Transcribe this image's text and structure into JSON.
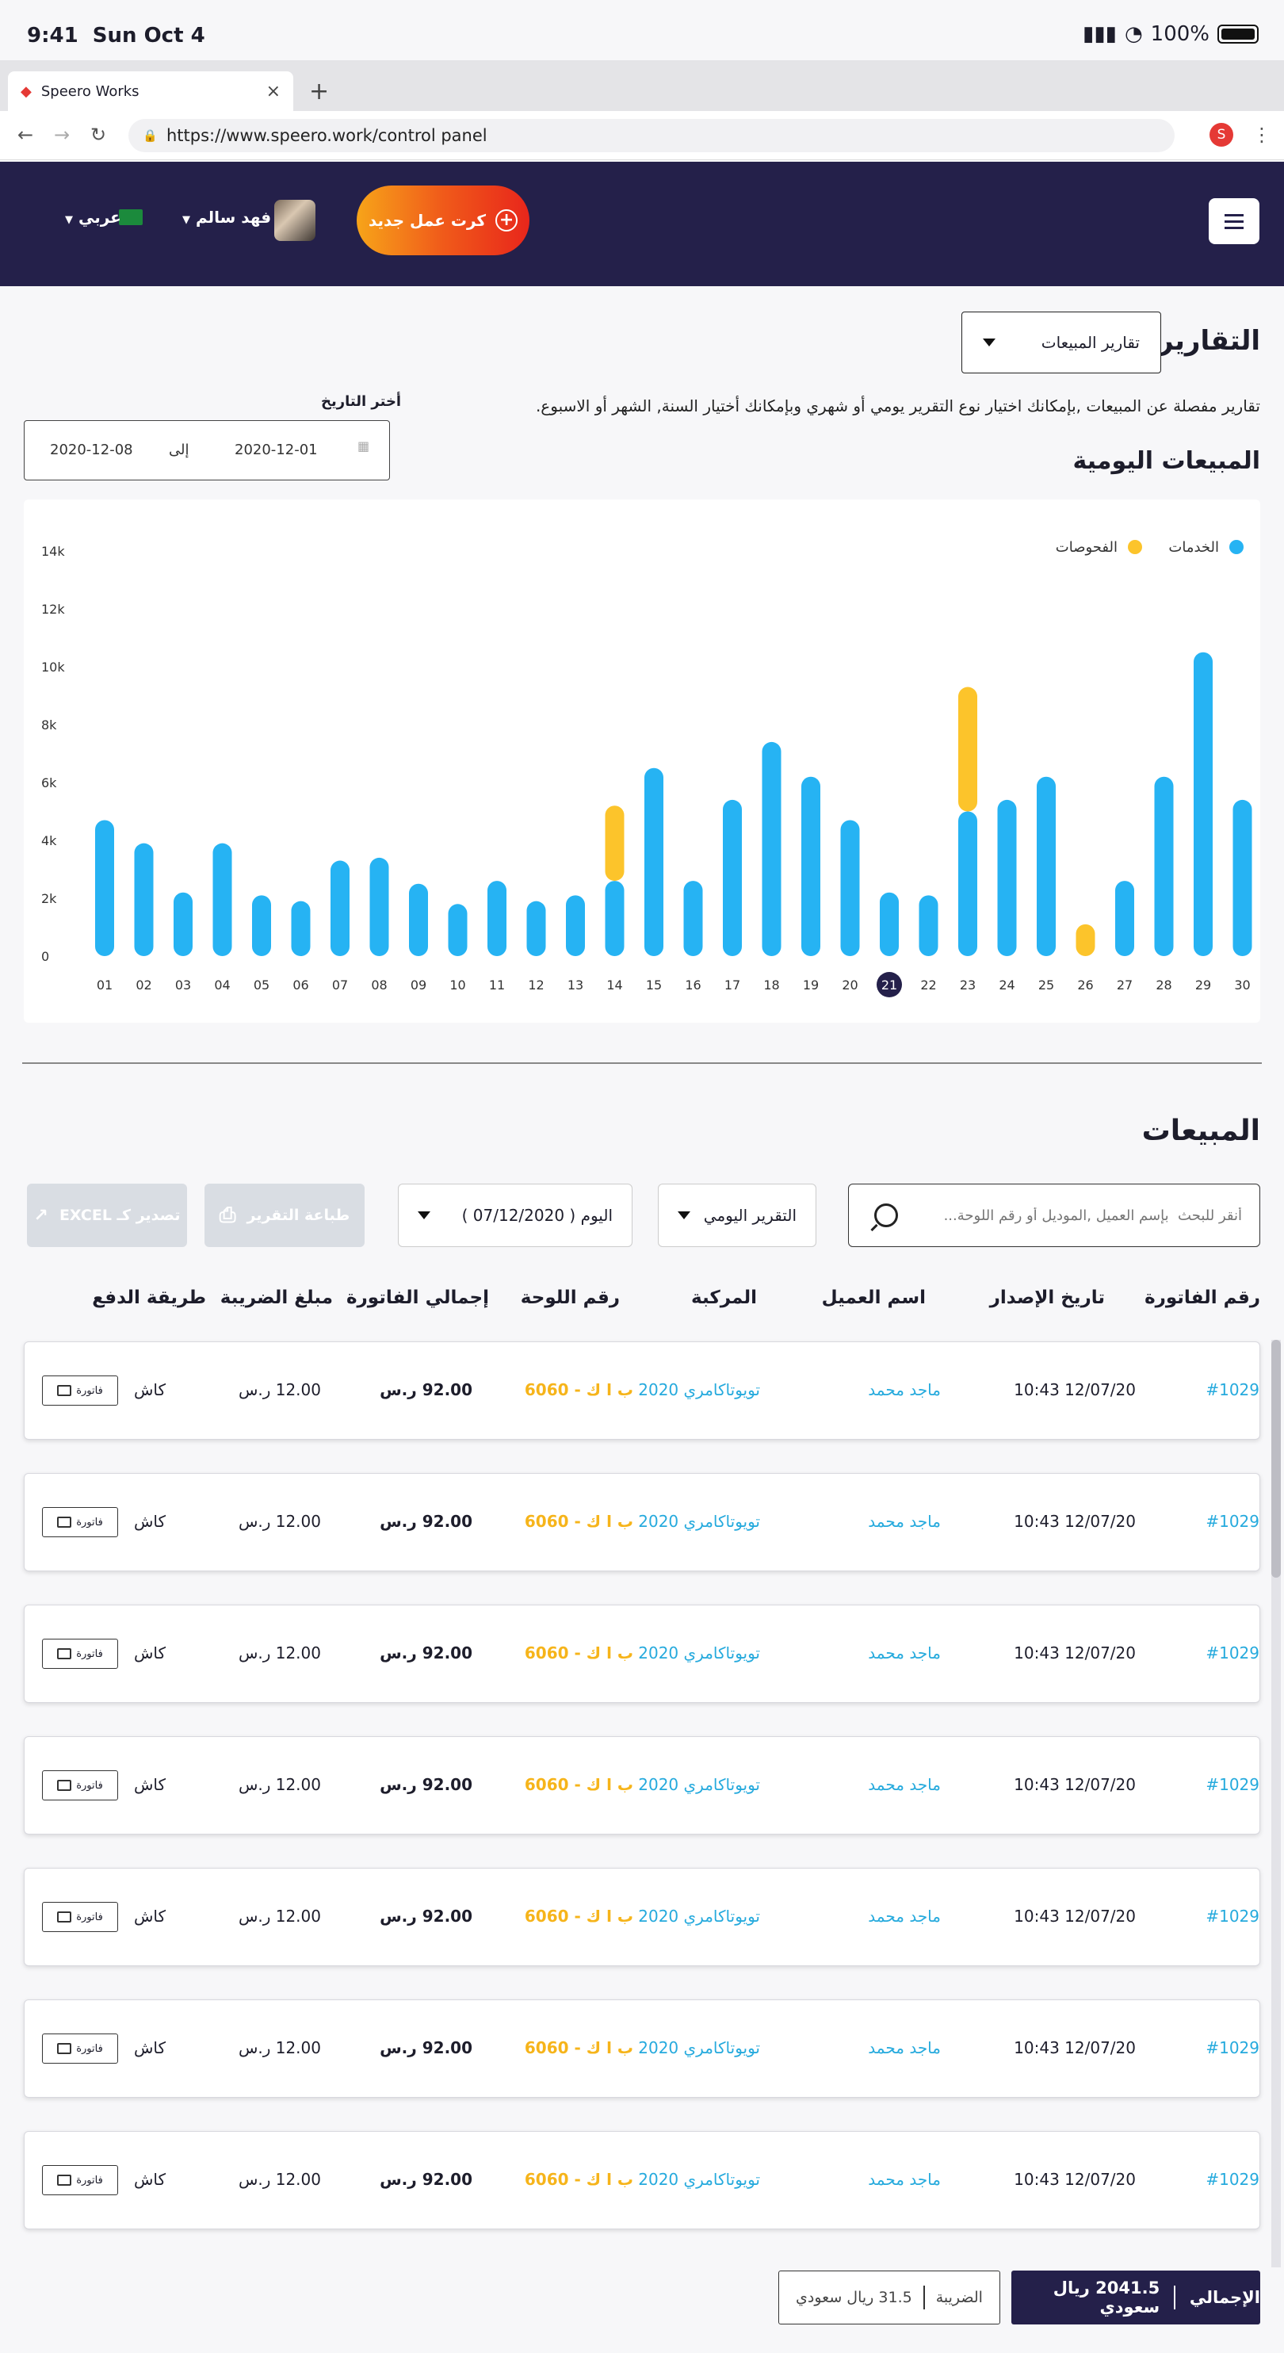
{
  "status_bar": {
    "time": "9:41",
    "date": "Sun Oct 4",
    "battery": "100%"
  },
  "browser": {
    "tab_title": "Speero Works",
    "url": "https://www.speero.work/control panel",
    "profile_initial": "S"
  },
  "header": {
    "new_job_label": "كرت عمل جديد",
    "user_name": "فهد سالم",
    "language": "عربي"
  },
  "reports": {
    "title": "التقارير",
    "report_type": "تقارير المبيعات",
    "description": "تقارير مفصلة عن المبيعات ,بإمكانك اختيار نوع التقرير يومي أو شهري وبإمكانك أختيار السنة, الشهر أو الاسبوع.",
    "date_label": "أختر التاريخ",
    "date_from": "2020-12-01",
    "date_to_label": "إلى",
    "date_to": "2020-12-08",
    "daily_sales_title": "المبيعات اليومية"
  },
  "chart_data": {
    "type": "bar",
    "stacked": true,
    "categories": [
      "01",
      "02",
      "03",
      "04",
      "05",
      "06",
      "07",
      "08",
      "09",
      "10",
      "11",
      "12",
      "13",
      "14",
      "15",
      "16",
      "17",
      "18",
      "19",
      "20",
      "21",
      "22",
      "23",
      "24",
      "25",
      "26",
      "27",
      "28",
      "29",
      "30"
    ],
    "series": [
      {
        "name": "الخدمات",
        "color": "#26b3f3",
        "values": [
          4700,
          3900,
          2200,
          3900,
          2100,
          1900,
          3300,
          3400,
          2500,
          1800,
          2600,
          1900,
          2100,
          2600,
          6500,
          2600,
          5400,
          7400,
          6200,
          4700,
          2200,
          2100,
          5000,
          5400,
          6200,
          0,
          2600,
          6200,
          10500,
          5400
        ]
      },
      {
        "name": "الفحوصات",
        "color": "#fcc42b",
        "values": [
          0,
          0,
          0,
          0,
          0,
          0,
          0,
          0,
          0,
          0,
          0,
          0,
          0,
          2600,
          0,
          0,
          0,
          0,
          0,
          0,
          0,
          0,
          4300,
          0,
          0,
          1100,
          0,
          0,
          0,
          0
        ]
      }
    ],
    "yticks": [
      "0",
      "2k",
      "4k",
      "6k",
      "8k",
      "10k",
      "12k",
      "14k"
    ],
    "ylim": [
      0,
      14000
    ],
    "highlighted_category": "21",
    "legend_position": "top-right"
  },
  "sales": {
    "title": "المبيعات",
    "search_placeholder": "أنقر للبحث  بإسم العميل ,الموديل أو رقم اللوحة...",
    "report_period": "التقرير اليومي",
    "day_selector": "اليوم ( 07/12/2020 )",
    "print_label": "طباعة التقرير",
    "export_label": "تصدير كـ EXCEL",
    "columns": [
      "رقم الفاتورة",
      "تاريخ الإصدار",
      "اسم العميل",
      "المركبة",
      "رقم اللوحة",
      "إجمالي الفاتورة",
      "مبلغ الضريبة",
      "طريقة الدفع"
    ],
    "rows": [
      {
        "invoice": "#1029",
        "date": "12/07/20 10:43",
        "customer": "ماجد محمد",
        "vehicle": "تويوتاكامري 2020",
        "plate": "ب ا ك - 6060",
        "total": "92.00 ر.س",
        "tax": "12.00 ر.س",
        "payment": "كاش",
        "invoice_btn": "فاتورة"
      },
      {
        "invoice": "#1029",
        "date": "12/07/20 10:43",
        "customer": "ماجد محمد",
        "vehicle": "تويوتاكامري 2020",
        "plate": "ب ا ك - 6060",
        "total": "92.00 ر.س",
        "tax": "12.00 ر.س",
        "payment": "كاش",
        "invoice_btn": "فاتورة"
      },
      {
        "invoice": "#1029",
        "date": "12/07/20 10:43",
        "customer": "ماجد محمد",
        "vehicle": "تويوتاكامري 2020",
        "plate": "ب ا ك - 6060",
        "total": "92.00 ر.س",
        "tax": "12.00 ر.س",
        "payment": "كاش",
        "invoice_btn": "فاتورة"
      },
      {
        "invoice": "#1029",
        "date": "12/07/20 10:43",
        "customer": "ماجد محمد",
        "vehicle": "تويوتاكامري 2020",
        "plate": "ب ا ك - 6060",
        "total": "92.00 ر.س",
        "tax": "12.00 ر.س",
        "payment": "كاش",
        "invoice_btn": "فاتورة"
      },
      {
        "invoice": "#1029",
        "date": "12/07/20 10:43",
        "customer": "ماجد محمد",
        "vehicle": "تويوتاكامري 2020",
        "plate": "ب ا ك - 6060",
        "total": "92.00 ر.س",
        "tax": "12.00 ر.س",
        "payment": "كاش",
        "invoice_btn": "فاتورة"
      },
      {
        "invoice": "#1029",
        "date": "12/07/20 10:43",
        "customer": "ماجد محمد",
        "vehicle": "تويوتاكامري 2020",
        "plate": "ب ا ك - 6060",
        "total": "92.00 ر.س",
        "tax": "12.00 ر.س",
        "payment": "كاش",
        "invoice_btn": "فاتورة"
      },
      {
        "invoice": "#1029",
        "date": "12/07/20 10:43",
        "customer": "ماجد محمد",
        "vehicle": "تويوتاكامري 2020",
        "plate": "ب ا ك - 6060",
        "total": "92.00 ر.س",
        "tax": "12.00 ر.س",
        "payment": "كاش",
        "invoice_btn": "فاتورة"
      }
    ],
    "totals": {
      "total_label": "الإجمالي",
      "total_value": "2041.5 ريال سعودي",
      "tax_label": "الضريبة",
      "tax_value": "31.5 ريال سعودي"
    }
  }
}
